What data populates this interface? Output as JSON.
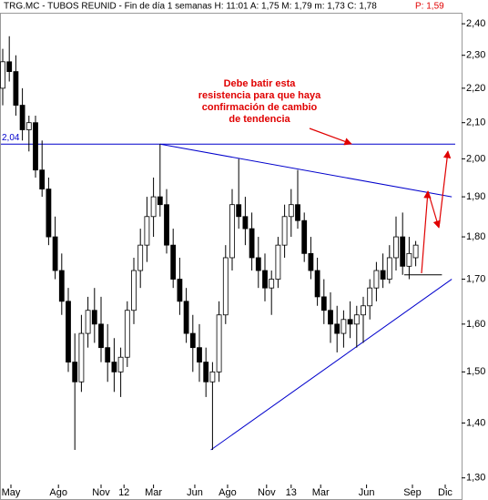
{
  "chart_data": {
    "type": "candlestick",
    "title": "TRG.MC - TUBOS REUNID - Fin de día 1 semanas  H: 11:01  A: 1,75  M: 1,79  m: 1,73  C: 1,78",
    "title_price": "P: 1,59",
    "log_scale": true,
    "color": "#000000",
    "x": [
      0,
      2,
      4,
      6,
      8,
      10,
      12,
      14,
      16,
      18,
      20,
      22,
      24,
      26,
      28,
      30,
      32,
      34,
      36,
      38,
      40,
      42,
      44,
      46,
      48,
      50,
      52,
      54,
      56,
      58,
      60,
      62,
      64,
      66,
      68,
      70,
      72,
      74,
      76,
      78,
      80,
      82,
      84,
      86,
      88,
      90,
      92,
      94,
      96,
      98,
      100,
      102,
      104,
      106,
      108,
      110,
      112,
      114,
      116,
      118,
      120,
      122,
      124,
      126
    ],
    "open": [
      2.2,
      2.28,
      2.25,
      2.15,
      2.08,
      2.1,
      1.97,
      1.92,
      1.8,
      1.72,
      1.65,
      1.52,
      1.48,
      1.58,
      1.63,
      1.6,
      1.55,
      1.52,
      1.5,
      1.53,
      1.63,
      1.72,
      1.78,
      1.85,
      1.9,
      1.88,
      1.78,
      1.7,
      1.65,
      1.58,
      1.55,
      1.52,
      1.48,
      1.5,
      1.62,
      1.75,
      1.88,
      1.85,
      1.82,
      1.75,
      1.72,
      1.68,
      1.7,
      1.78,
      1.85,
      1.88,
      1.84,
      1.76,
      1.72,
      1.66,
      1.63,
      1.6,
      1.58,
      1.61,
      1.6,
      1.62,
      1.64,
      1.68,
      1.72,
      1.7,
      1.75,
      1.8,
      1.73,
      1.75
    ],
    "high": [
      2.32,
      2.36,
      2.3,
      2.2,
      2.12,
      2.12,
      2.05,
      1.95,
      1.85,
      1.76,
      1.68,
      1.58,
      1.62,
      1.66,
      1.68,
      1.66,
      1.6,
      1.57,
      1.55,
      1.65,
      1.75,
      1.82,
      1.9,
      1.95,
      2.04,
      1.92,
      1.82,
      1.75,
      1.68,
      1.62,
      1.6,
      1.55,
      1.52,
      1.65,
      1.78,
      1.92,
      2.0,
      1.9,
      1.86,
      1.8,
      1.76,
      1.72,
      1.8,
      1.88,
      1.92,
      1.97,
      1.86,
      1.8,
      1.75,
      1.7,
      1.67,
      1.64,
      1.63,
      1.65,
      1.64,
      1.66,
      1.7,
      1.74,
      1.76,
      1.78,
      1.85,
      1.86,
      1.8,
      1.79
    ],
    "low": [
      2.15,
      2.22,
      2.12,
      2.05,
      2.02,
      1.95,
      1.9,
      1.78,
      1.7,
      1.62,
      1.5,
      1.35,
      1.46,
      1.55,
      1.56,
      1.52,
      1.48,
      1.46,
      1.45,
      1.51,
      1.6,
      1.68,
      1.74,
      1.8,
      1.85,
      1.76,
      1.68,
      1.62,
      1.56,
      1.5,
      1.48,
      1.45,
      1.35,
      1.48,
      1.6,
      1.72,
      1.82,
      1.78,
      1.72,
      1.68,
      1.65,
      1.62,
      1.68,
      1.75,
      1.8,
      1.82,
      1.74,
      1.7,
      1.64,
      1.6,
      1.56,
      1.54,
      1.55,
      1.57,
      1.55,
      1.56,
      1.61,
      1.65,
      1.68,
      1.69,
      1.72,
      1.71,
      1.7,
      1.73
    ],
    "close": [
      2.28,
      2.25,
      2.15,
      2.08,
      2.1,
      1.97,
      1.92,
      1.8,
      1.72,
      1.65,
      1.52,
      1.48,
      1.58,
      1.63,
      1.6,
      1.55,
      1.52,
      1.5,
      1.53,
      1.63,
      1.72,
      1.78,
      1.85,
      1.9,
      1.88,
      1.78,
      1.7,
      1.65,
      1.58,
      1.55,
      1.52,
      1.48,
      1.5,
      1.62,
      1.75,
      1.88,
      1.85,
      1.82,
      1.75,
      1.72,
      1.68,
      1.7,
      1.78,
      1.85,
      1.88,
      1.84,
      1.76,
      1.72,
      1.66,
      1.63,
      1.6,
      1.58,
      1.61,
      1.6,
      1.62,
      1.64,
      1.68,
      1.72,
      1.7,
      1.75,
      1.8,
      1.73,
      1.76,
      1.78
    ],
    "xlim": [
      0,
      140
    ],
    "xticks": [
      {
        "value": 2.5,
        "label": "May"
      },
      {
        "value": 17,
        "label": "Ago"
      },
      {
        "value": 30,
        "label": "Nov"
      },
      {
        "value": 37,
        "label": "12"
      },
      {
        "value": 46,
        "label": "Mar"
      },
      {
        "value": 58.6,
        "label": "Jun"
      },
      {
        "value": 68.6,
        "label": "Ago"
      },
      {
        "value": 80.5,
        "label": "Nov"
      },
      {
        "value": 88,
        "label": "13"
      },
      {
        "value": 97,
        "label": "Mar"
      },
      {
        "value": 111,
        "label": "Jun"
      },
      {
        "value": 125,
        "label": "Sep"
      },
      {
        "value": 135,
        "label": "Dic"
      }
    ],
    "ylim": [
      1.29,
      2.43
    ],
    "yticks": [
      {
        "value": 1.3,
        "label": "1,30"
      },
      {
        "value": 1.4,
        "label": "1,40"
      },
      {
        "value": 1.5,
        "label": "1,50"
      },
      {
        "value": 1.6,
        "label": "1,60"
      },
      {
        "value": 1.7,
        "label": "1,70"
      },
      {
        "value": 1.8,
        "label": "1,80"
      },
      {
        "value": 1.9,
        "label": "1,90"
      },
      {
        "value": 2.0,
        "label": "2,00"
      },
      {
        "value": 2.1,
        "label": "2,10"
      },
      {
        "value": 2.2,
        "label": "2,20"
      },
      {
        "value": 2.3,
        "label": "2,30"
      },
      {
        "value": 2.4,
        "label": "2,40"
      }
    ],
    "level": {
      "value": 2.04,
      "label": "2,04",
      "color": "#0000cc"
    },
    "trendlines": [
      {
        "x": [
          48,
          137
        ],
        "y": [
          2.04,
          1.9
        ],
        "color": "#0000cc"
      },
      {
        "x": [
          63.5,
          137
        ],
        "y": [
          1.35,
          1.7
        ],
        "color": "#0000cc"
      },
      {
        "x": [
          122.5,
          134
        ],
        "y": [
          1.71,
          1.71
        ],
        "color": "#000000"
      }
    ],
    "annotation": [
      "Debe batir esta",
      "resistencia para que haya",
      "confirmación de cambio",
      "de tendencia"
    ]
  }
}
